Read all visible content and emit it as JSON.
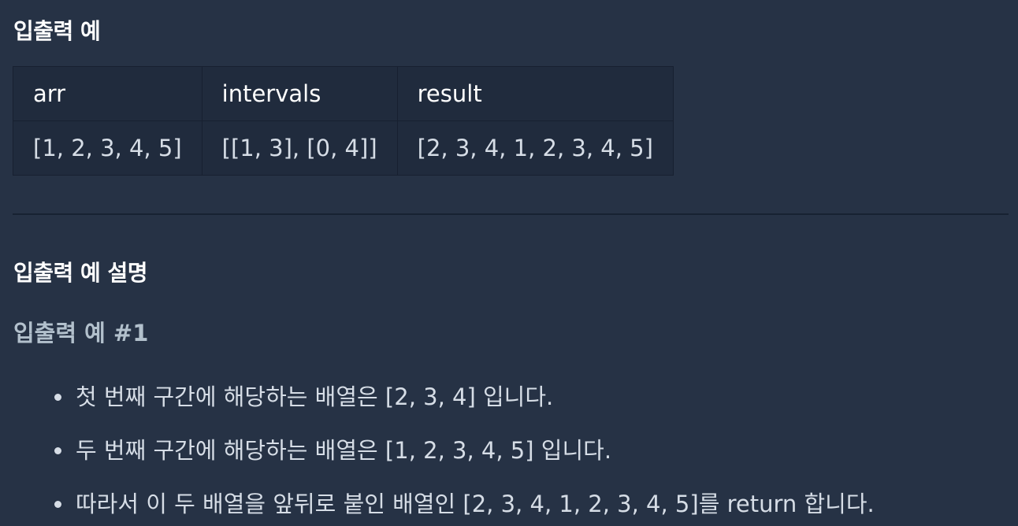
{
  "section_io": {
    "title": "입출력 예",
    "headers": [
      "arr",
      "intervals",
      "result"
    ],
    "rows": [
      [
        "[1, 2, 3, 4, 5]",
        "[[1, 3], [0, 4]]",
        "[2, 3, 4, 1, 2, 3, 4, 5]"
      ]
    ]
  },
  "section_desc": {
    "title": "입출력 예 설명",
    "example_title": "입출력 예 #1",
    "items": [
      "첫 번째 구간에 해당하는 배열은 [2, 3, 4] 입니다.",
      "두 번째 구간에 해당하는 배열은 [1, 2, 3, 4, 5] 입니다.",
      "따라서 이 두 배열을 앞뒤로 붙인 배열인 [2, 3, 4, 1, 2, 3, 4, 5]를 return 합니다."
    ]
  }
}
